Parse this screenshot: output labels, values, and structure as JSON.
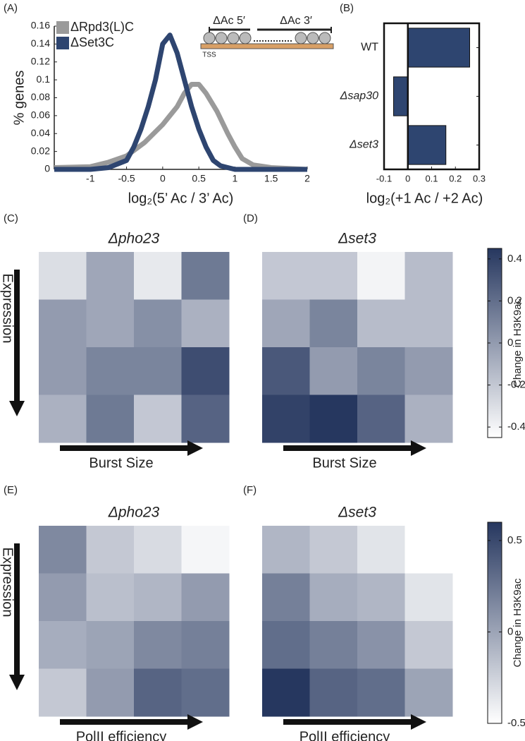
{
  "chart_data": [
    {
      "type": "line",
      "panel": "(A)",
      "xlabel": "log₂(5’ Ac / 3’ Ac)",
      "ylabel": "% genes",
      "xlim": [
        -1.5,
        2
      ],
      "xticks": [
        -1,
        -0.5,
        0,
        0.5,
        1,
        1.5,
        2
      ],
      "ylim": [
        0,
        0.16
      ],
      "yticks": [
        0,
        0.02,
        0.04,
        0.06,
        0.08,
        0.1,
        0.12,
        0.14,
        0.16
      ],
      "legend": "upper left",
      "annotations": [
        "ΔAc 5′",
        "ΔAc 3′",
        "TSS"
      ],
      "series": [
        {
          "name": "ΔRpd3(L)C",
          "color": "#9a9a9a",
          "x": [
            -1.5,
            -1,
            -0.75,
            -0.5,
            -0.25,
            0,
            0.1,
            0.2,
            0.3,
            0.4,
            0.5,
            0.6,
            0.75,
            0.9,
            1,
            1.1,
            1.25,
            1.5,
            2
          ],
          "values": [
            0.002,
            0.003,
            0.008,
            0.015,
            0.03,
            0.05,
            0.06,
            0.07,
            0.085,
            0.095,
            0.095,
            0.085,
            0.065,
            0.04,
            0.025,
            0.012,
            0.005,
            0.002,
            0
          ]
        },
        {
          "name": "ΔSet3C",
          "color": "#2e4570",
          "x": [
            -1.5,
            -1,
            -0.75,
            -0.5,
            -0.4,
            -0.3,
            -0.2,
            -0.1,
            0,
            0.1,
            0.2,
            0.3,
            0.4,
            0.5,
            0.6,
            0.7,
            0.8,
            0.9,
            1,
            1.5,
            2
          ],
          "values": [
            0,
            0,
            0.002,
            0.01,
            0.025,
            0.045,
            0.07,
            0.1,
            0.14,
            0.15,
            0.13,
            0.1,
            0.07,
            0.045,
            0.025,
            0.01,
            0.004,
            0.002,
            0,
            0,
            0
          ]
        }
      ]
    },
    {
      "type": "hbar",
      "panel": "(B)",
      "xlabel": "log₂(+1 Ac / +2 Ac)",
      "categories": [
        "WT",
        "Δsap30",
        "Δset3"
      ],
      "values": [
        0.26,
        -0.06,
        0.16
      ],
      "color": "#2e4570",
      "xlim": [
        -0.1,
        0.3
      ],
      "xticks": [
        -0.1,
        0,
        0.1,
        0.2,
        0.3
      ]
    },
    {
      "type": "heatmap",
      "panel": "(C)",
      "title": "Δpho23",
      "xlabel": "Burst Size",
      "ylabel": "Expression",
      "cmap": [
        "#ffffff",
        "#26375f"
      ],
      "clim": [
        -0.45,
        0.45
      ],
      "values": [
        [
          -0.3,
          -0.05,
          -0.35,
          0.15
        ],
        [
          0,
          -0.05,
          0.05,
          -0.1
        ],
        [
          0,
          0.1,
          0.1,
          0.35
        ],
        [
          -0.1,
          0.15,
          -0.2,
          0.25
        ]
      ]
    },
    {
      "type": "heatmap",
      "panel": "(D)",
      "title": "Δset3",
      "xlabel": "Burst Size",
      "cmap": [
        "#ffffff",
        "#26375f"
      ],
      "clim": [
        -0.45,
        0.45
      ],
      "values": [
        [
          -0.2,
          -0.2,
          -0.4,
          -0.15
        ],
        [
          -0.05,
          0.1,
          -0.15,
          -0.15
        ],
        [
          0.3,
          0,
          0.1,
          0
        ],
        [
          0.4,
          0.45,
          0.25,
          -0.1
        ]
      ],
      "colorbar": {
        "label": "Change in H3K9ac",
        "ticks": [
          -0.4,
          -0.2,
          0,
          0.2,
          0.4
        ]
      }
    },
    {
      "type": "heatmap",
      "panel": "(E)",
      "title": "Δpho23",
      "xlabel": "PolII efficiency",
      "ylabel": "Expression",
      "cmap": [
        "#ffffff",
        "#26375f"
      ],
      "clim": [
        -0.5,
        0.6
      ],
      "values": [
        [
          0.15,
          -0.2,
          -0.3,
          -0.45
        ],
        [
          0.05,
          -0.15,
          -0.1,
          0.05
        ],
        [
          -0.05,
          0,
          0.15,
          0.2
        ],
        [
          -0.2,
          0.05,
          0.35,
          0.3
        ]
      ]
    },
    {
      "type": "heatmap",
      "panel": "(F)",
      "title": "Δset3",
      "xlabel": "PolII efficiency",
      "cmap": [
        "#ffffff",
        "#26375f"
      ],
      "clim": [
        -0.5,
        0.6
      ],
      "values": [
        [
          -0.1,
          -0.2,
          -0.35,
          -0.5
        ],
        [
          0.2,
          -0.05,
          -0.1,
          -0.35
        ],
        [
          0.3,
          0.2,
          0.1,
          -0.2
        ],
        [
          0.6,
          0.35,
          0.3,
          0
        ]
      ],
      "colorbar": {
        "label": "Change in H3K9ac",
        "ticks": [
          -0.5,
          0,
          0.5
        ]
      }
    }
  ]
}
